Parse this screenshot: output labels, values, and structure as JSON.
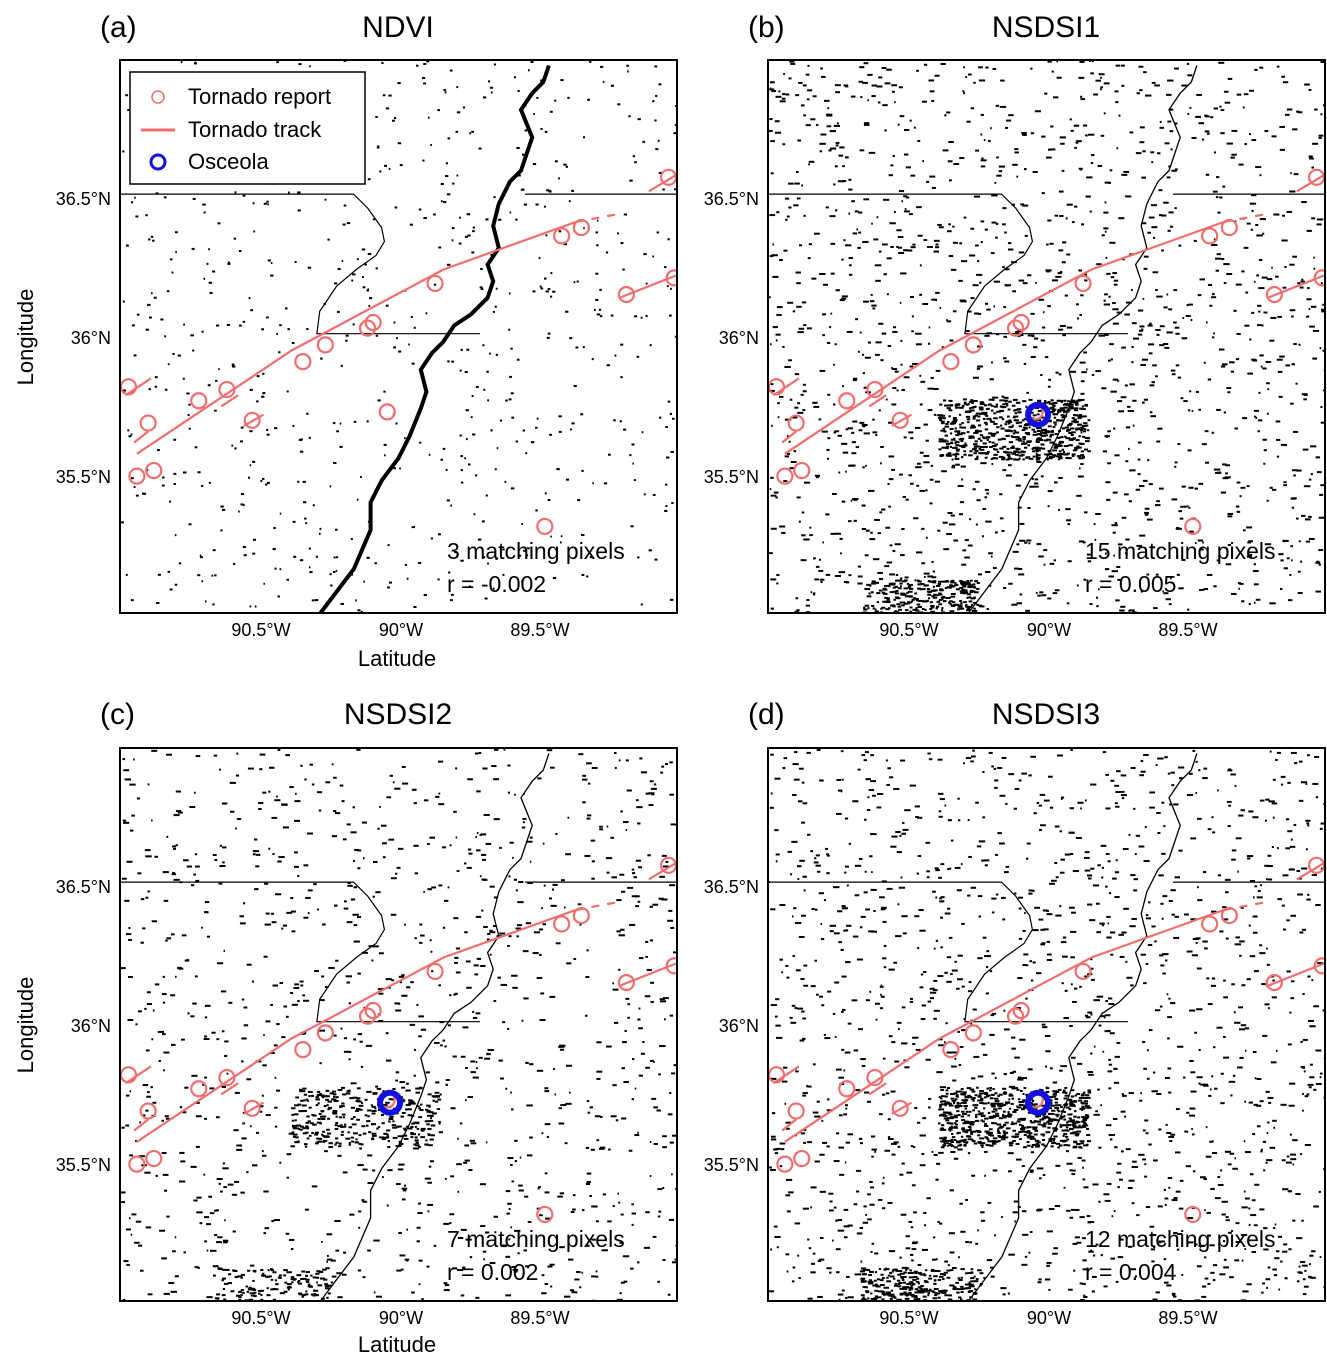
{
  "figure": {
    "legend": {
      "items": [
        {
          "label": "Tornado report",
          "symbol": "circle",
          "color": "#f26d6d"
        },
        {
          "label": "Tornado track",
          "symbol": "line",
          "color": "#f26d6d"
        },
        {
          "label": "Osceola",
          "symbol": "circle",
          "color": "#1010e0"
        }
      ]
    },
    "x_axis": {
      "label": "Latitude",
      "ticks": [
        "90.5°W",
        "90°W",
        "89.5°W"
      ]
    },
    "y_axis": {
      "label": "Longitude",
      "ticks": [
        "36.5°N",
        "36°N",
        "35.5°N"
      ]
    },
    "panels": [
      {
        "letter": "(a)",
        "title": "NDVI",
        "stat1": "3 matching pixels",
        "stat2": "r = -0.002",
        "osceola": false,
        "noise": "low"
      },
      {
        "letter": "(b)",
        "title": "NSDSI1",
        "stat1": "15 matching pixels",
        "stat2": "r = 0.005",
        "osceola": true,
        "noise": "high"
      },
      {
        "letter": "(c)",
        "title": "NSDSI2",
        "stat1": "7 matching pixels",
        "stat2": "r = 0.002",
        "osceola": true,
        "noise": "medium"
      },
      {
        "letter": "(d)",
        "title": "NSDSI3",
        "stat1": "12 matching pixels",
        "stat2": "r = 0.004",
        "osceola": true,
        "noise": "high"
      }
    ]
  },
  "chart_data": {
    "type": "scatter",
    "x_ticks": [
      -90.5,
      -90.0,
      -89.5
    ],
    "y_ticks": [
      35.5,
      36.0,
      36.5
    ],
    "xlim": [
      -90.99,
      -89.01
    ],
    "ylim": [
      35.0,
      36.98
    ],
    "osceola": {
      "lon": -90.03,
      "lat": 35.71
    },
    "tornado_reports": [
      {
        "lon": -90.96,
        "lat": 35.81
      },
      {
        "lon": -90.89,
        "lat": 35.68
      },
      {
        "lon": -90.93,
        "lat": 35.49
      },
      {
        "lon": -90.87,
        "lat": 35.51
      },
      {
        "lon": -90.71,
        "lat": 35.76
      },
      {
        "lon": -90.61,
        "lat": 35.8
      },
      {
        "lon": -90.52,
        "lat": 35.69
      },
      {
        "lon": -90.34,
        "lat": 35.9
      },
      {
        "lon": -90.26,
        "lat": 35.96
      },
      {
        "lon": -90.11,
        "lat": 36.02
      },
      {
        "lon": -90.09,
        "lat": 36.04
      },
      {
        "lon": -89.87,
        "lat": 36.18
      },
      {
        "lon": -90.04,
        "lat": 35.72
      },
      {
        "lon": -89.42,
        "lat": 36.35
      },
      {
        "lon": -89.35,
        "lat": 36.38
      },
      {
        "lon": -89.19,
        "lat": 36.14
      },
      {
        "lon": -89.02,
        "lat": 36.2
      },
      {
        "lon": -89.04,
        "lat": 36.56
      },
      {
        "lon": -89.48,
        "lat": 35.31
      }
    ],
    "tornado_tracks": [
      {
        "points": [
          [
            -90.93,
            35.57
          ],
          [
            -90.38,
            35.94
          ],
          [
            -89.84,
            36.23
          ],
          [
            -89.37,
            36.4
          ]
        ],
        "dashed": false
      },
      {
        "points": [
          [
            -89.37,
            36.4
          ],
          [
            -89.21,
            36.43
          ]
        ],
        "dashed": true
      },
      {
        "points": [
          [
            -89.11,
            36.51
          ],
          [
            -89.01,
            36.57
          ]
        ],
        "dashed": false
      },
      {
        "points": [
          [
            -90.97,
            35.78
          ],
          [
            -90.88,
            35.84
          ]
        ],
        "dashed": false
      },
      {
        "points": [
          [
            -90.94,
            35.61
          ],
          [
            -90.89,
            35.65
          ]
        ],
        "dashed": false
      },
      {
        "points": [
          [
            -90.63,
            35.74
          ],
          [
            -90.57,
            35.78
          ]
        ],
        "dashed": false
      },
      {
        "points": [
          [
            -90.55,
            35.67
          ],
          [
            -90.48,
            35.71
          ]
        ],
        "dashed": false
      },
      {
        "points": [
          [
            -89.21,
            36.13
          ],
          [
            -89.01,
            36.21
          ]
        ],
        "dashed": false
      }
    ],
    "state_border": [
      [
        -90.99,
        36.5
      ],
      [
        -90.16,
        36.5
      ],
      [
        -90.11,
        36.45
      ],
      [
        -90.06,
        36.38
      ],
      [
        -90.05,
        36.33
      ],
      [
        -90.08,
        36.28
      ],
      [
        -90.15,
        36.23
      ],
      [
        -90.22,
        36.17
      ],
      [
        -90.28,
        36.08
      ],
      [
        -90.29,
        36.0
      ],
      [
        -89.71,
        36.0
      ]
    ],
    "border_ne": [
      [
        -89.55,
        36.5
      ],
      [
        -89.01,
        36.5
      ]
    ]
  }
}
